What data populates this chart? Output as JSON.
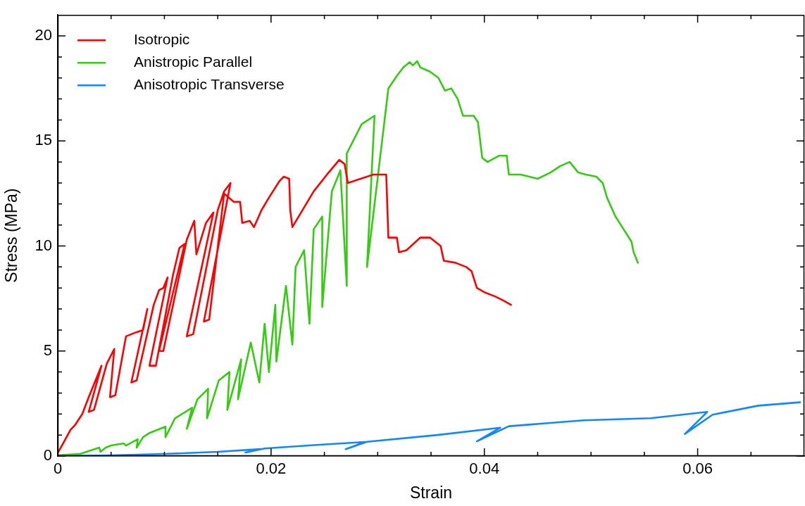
{
  "chart_data": {
    "type": "line",
    "xlabel": "Strain",
    "ylabel": "Stress (MPa)",
    "xlim": [
      0,
      0.07
    ],
    "ylim": [
      0,
      21
    ],
    "xticks": [
      0,
      {
        "value": 0.005,
        "label": null
      },
      {
        "value": 0.01,
        "label": null
      },
      {
        "value": 0.015,
        "label": null
      },
      0.02,
      {
        "value": 0.025,
        "label": null
      },
      {
        "value": 0.03,
        "label": null
      },
      {
        "value": 0.035,
        "label": null
      },
      0.04,
      {
        "value": 0.045,
        "label": null
      },
      {
        "value": 0.05,
        "label": null
      },
      {
        "value": 0.055,
        "label": null
      },
      0.06,
      {
        "value": 0.065,
        "label": null
      }
    ],
    "yticks": [
      0,
      {
        "value": 1,
        "label": null
      },
      {
        "value": 2,
        "label": null
      },
      {
        "value": 3,
        "label": null
      },
      {
        "value": 4,
        "label": null
      },
      5,
      {
        "value": 6,
        "label": null
      },
      {
        "value": 7,
        "label": null
      },
      {
        "value": 8,
        "label": null
      },
      {
        "value": 9,
        "label": null
      },
      10,
      {
        "value": 11,
        "label": null
      },
      {
        "value": 12,
        "label": null
      },
      {
        "value": 13,
        "label": null
      },
      {
        "value": 14,
        "label": null
      },
      15,
      {
        "value": 16,
        "label": null
      },
      {
        "value": 17,
        "label": null
      },
      {
        "value": 18,
        "label": null
      },
      {
        "value": 19,
        "label": null
      },
      20
    ],
    "legend": "top left",
    "grid": false,
    "series": [
      {
        "name": "Isotropic",
        "color": "#ff0000",
        "x": [
          0,
          0.0005,
          0.0012,
          0.0016,
          0.0023,
          0.0029,
          0.0041,
          0.0029,
          0.0034,
          0.0046,
          0.0053,
          0.0049,
          0.0054,
          0.0064,
          0.0074,
          0.008,
          0.0084,
          0.0069,
          0.0074,
          0.009,
          0.0095,
          0.0099,
          0.0103,
          0.0086,
          0.0092,
          0.0108,
          0.0114,
          0.0119,
          0.0095,
          0.0099,
          0.0121,
          0.0128,
          0.013,
          0.0139,
          0.0146,
          0.0121,
          0.0127,
          0.015,
          0.0156,
          0.0162,
          0.0137,
          0.0142,
          0.0156,
          0.0165,
          0.0171,
          0.0173,
          0.018,
          0.0184,
          0.0191,
          0.0198,
          0.0208,
          0.0212,
          0.0217,
          0.0218,
          0.022,
          0.024,
          0.0254,
          0.0264,
          0.0269,
          0.0272,
          0.029,
          0.0296,
          0.0308,
          0.031,
          0.0318,
          0.032,
          0.0327,
          0.034,
          0.0349,
          0.0359,
          0.0362,
          0.0373,
          0.0383,
          0.0388,
          0.0393,
          0.04,
          0.041,
          0.0418,
          0.0425
        ],
        "values": [
          0.15,
          0.6,
          1.25,
          1.46,
          2.0,
          2.8,
          4.3,
          2.1,
          2.2,
          4.4,
          5.1,
          2.8,
          2.9,
          5.7,
          5.9,
          6.0,
          7.0,
          3.5,
          3.6,
          7.2,
          7.9,
          8.0,
          8.5,
          4.3,
          4.3,
          8.6,
          9.9,
          10.1,
          5.0,
          5.0,
          10.3,
          11.2,
          9.6,
          11.1,
          11.6,
          5.7,
          5.8,
          11.7,
          12.6,
          13.0,
          6.4,
          6.5,
          12.5,
          12.1,
          12.1,
          11.1,
          11.2,
          10.9,
          11.7,
          12.3,
          13.1,
          13.3,
          13.2,
          11.7,
          10.9,
          12.6,
          13.5,
          14.1,
          13.9,
          13.0,
          13.3,
          13.4,
          13.4,
          10.4,
          10.4,
          9.7,
          9.8,
          10.4,
          10.4,
          10.0,
          9.3,
          9.2,
          9.0,
          8.8,
          8.0,
          7.8,
          7.6,
          7.4,
          7.2
        ]
      },
      {
        "name": "Anistropic Parallel",
        "color": "#33cc11",
        "x": [
          0,
          0.0021,
          0.0039,
          0.004,
          0.0045,
          0.005,
          0.0062,
          0.0064,
          0.0075,
          0.0074,
          0.008,
          0.0086,
          0.0101,
          0.0101,
          0.011,
          0.0126,
          0.0121,
          0.0131,
          0.0141,
          0.014,
          0.0151,
          0.0161,
          0.0159,
          0.0172,
          0.0169,
          0.0181,
          0.0189,
          0.0194,
          0.0198,
          0.0204,
          0.0205,
          0.0214,
          0.022,
          0.0223,
          0.0231,
          0.0236,
          0.024,
          0.0248,
          0.0248,
          0.0257,
          0.0265,
          0.0271,
          0.0271,
          0.0285,
          0.0297,
          0.029,
          0.031,
          0.0318,
          0.0324,
          0.033,
          0.0333,
          0.0337,
          0.034,
          0.0349,
          0.0357,
          0.0363,
          0.0369,
          0.0375,
          0.038,
          0.039,
          0.0394,
          0.0398,
          0.0403,
          0.0414,
          0.0421,
          0.0423,
          0.0434,
          0.045,
          0.0462,
          0.0471,
          0.048,
          0.0488,
          0.0495,
          0.0505,
          0.0511,
          0.0515,
          0.0523,
          0.0528,
          0.0538,
          0.054,
          0.0544
        ],
        "values": [
          0.04,
          0.1,
          0.4,
          0.2,
          0.4,
          0.5,
          0.6,
          0.5,
          0.8,
          0.4,
          0.9,
          1.1,
          1.4,
          0.9,
          1.8,
          2.3,
          1.3,
          2.7,
          3.2,
          1.8,
          3.6,
          4.0,
          2.2,
          4.6,
          2.7,
          5.4,
          3.5,
          6.3,
          4.0,
          7.2,
          4.5,
          8.1,
          5.3,
          9.0,
          9.8,
          6.3,
          10.8,
          11.4,
          7.1,
          12.6,
          13.6,
          8.1,
          14.4,
          15.8,
          16.2,
          9.0,
          17.5,
          18.1,
          18.5,
          18.75,
          18.6,
          18.8,
          18.5,
          18.3,
          18.0,
          17.4,
          17.5,
          17.0,
          16.2,
          16.2,
          15.9,
          14.2,
          14.0,
          14.3,
          14.3,
          13.4,
          13.4,
          13.2,
          13.5,
          13.8,
          14.0,
          13.5,
          13.4,
          13.3,
          13.0,
          12.3,
          11.4,
          11.0,
          10.2,
          9.7,
          9.2
        ]
      },
      {
        "name": "Anisotropic Transverse",
        "color": "#1188ff",
        "x": [
          0,
          0.005,
          0.01,
          0.015,
          0.019,
          0.0176,
          0.0194,
          0.024,
          0.0288,
          0.027,
          0.029,
          0.0356,
          0.0415,
          0.0393,
          0.0423,
          0.0493,
          0.0556,
          0.0609,
          0.0588,
          0.0614,
          0.0657,
          0.0696
        ],
        "values": [
          0,
          0.03,
          0.1,
          0.2,
          0.33,
          0.17,
          0.36,
          0.52,
          0.67,
          0.33,
          0.68,
          1.0,
          1.35,
          0.7,
          1.42,
          1.7,
          1.8,
          2.1,
          1.05,
          1.97,
          2.4,
          2.56
        ]
      }
    ]
  }
}
